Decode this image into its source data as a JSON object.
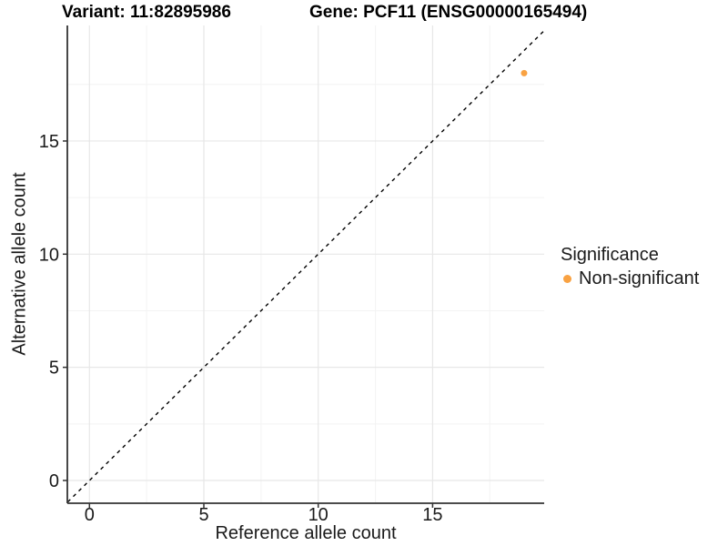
{
  "chart_data": {
    "type": "scatter",
    "title_left": "Variant: 11:82895986",
    "title_right": "Gene: PCF11 (ENSG00000165494)",
    "xlabel": "Reference allele count",
    "ylabel": "Alternative allele count",
    "xlim": [
      -0.95,
      19.9
    ],
    "ylim": [
      -1.0,
      20.1
    ],
    "x_ticks": [
      0,
      5,
      10,
      15
    ],
    "y_ticks": [
      0,
      5,
      10,
      15
    ],
    "x_minor_ticks": [
      2.5,
      7.5,
      12.5,
      17.5
    ],
    "y_minor_ticks": [
      2.5,
      7.5,
      12.5,
      17.5
    ],
    "grid": "on",
    "points": [
      {
        "x": 19,
        "y": 18,
        "series": "Non-significant"
      }
    ],
    "series": [
      {
        "name": "Non-significant",
        "color": "#F9A242"
      }
    ],
    "reference_line": {
      "type": "identity",
      "style": "dashed",
      "color": "#000000"
    },
    "legend": {
      "title": "Significance",
      "position": "right",
      "items": [
        {
          "label": "Non-significant",
          "color": "#F9A242"
        }
      ]
    },
    "style": {
      "grid_major_color": "#e7e7e7",
      "grid_minor_color": "#f3f3f3",
      "axis_color": "#333333",
      "tick_label_color": "#1a1a1a",
      "background": "#ffffff"
    }
  }
}
